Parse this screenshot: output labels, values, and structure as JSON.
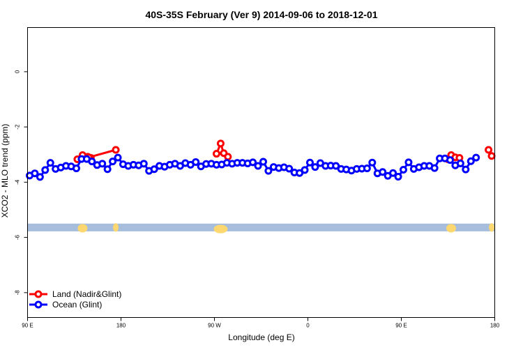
{
  "chart_data": {
    "type": "line",
    "title": "40S-35S February (Ver 9)   2014-09-06 to 2018-12-01",
    "xlabel": "Longitude (deg E)",
    "ylabel": "XCO2 - MLO trend (ppm)",
    "x_ticks": [
      {
        "value": 90,
        "label": "90 E"
      },
      {
        "value": 180,
        "label": "180"
      },
      {
        "value": 270,
        "label": "90 W"
      },
      {
        "value": 360,
        "label": "0"
      },
      {
        "value": 450,
        "label": "90 E"
      },
      {
        "value": 540,
        "label": "180"
      }
    ],
    "y_ticks": [
      0,
      -2,
      -4,
      -6,
      -8
    ],
    "xlim": [
      90,
      540
    ],
    "ylim": [
      -8.9,
      1.6
    ],
    "grid": false,
    "legend_position": "bottom-left",
    "band": {
      "y_from": -5.5,
      "y_to": -5.78,
      "color": "#a6bddb",
      "land_color": "#fdd870"
    },
    "series": [
      {
        "name": "Land (Nadir&Glint)",
        "color": "#ff0000",
        "segments": [
          [
            [
              138,
              -3.17
            ],
            [
              143,
              -3.02
            ],
            [
              148,
              -3.08
            ],
            [
              151,
              -3.12
            ]
          ],
          [
            [
              175,
              -2.83
            ],
            [
              149,
              -3.1
            ]
          ],
          [
            [
              272,
              -2.97
            ],
            [
              276,
              -2.6
            ],
            [
              279,
              -2.95
            ],
            [
              283,
              -3.08
            ]
          ],
          [
            [
              495,
              -3.17
            ],
            [
              498,
              -3.02
            ],
            [
              502,
              -3.1
            ],
            [
              506,
              -3.12
            ]
          ],
          [
            [
              534,
              -2.83
            ],
            [
              537,
              -3.05
            ]
          ]
        ]
      },
      {
        "name": "Ocean (Glint)",
        "color": "#0000ff",
        "points": [
          [
            92,
            -3.76
          ],
          [
            97,
            -3.68
          ],
          [
            102,
            -3.81
          ],
          [
            107,
            -3.56
          ],
          [
            112,
            -3.3
          ],
          [
            117,
            -3.52
          ],
          [
            122,
            -3.47
          ],
          [
            127,
            -3.41
          ],
          [
            132,
            -3.43
          ],
          [
            137,
            -3.5
          ],
          [
            142,
            -3.16
          ],
          [
            147,
            -3.16
          ],
          [
            152,
            -3.25
          ],
          [
            157,
            -3.38
          ],
          [
            162,
            -3.33
          ],
          [
            167,
            -3.53
          ],
          [
            172,
            -3.25
          ],
          [
            177,
            -3.11
          ],
          [
            182,
            -3.35
          ],
          [
            187,
            -3.41
          ],
          [
            192,
            -3.37
          ],
          [
            197,
            -3.39
          ],
          [
            202,
            -3.33
          ],
          [
            207,
            -3.59
          ],
          [
            212,
            -3.53
          ],
          [
            217,
            -3.41
          ],
          [
            222,
            -3.44
          ],
          [
            227,
            -3.37
          ],
          [
            232,
            -3.33
          ],
          [
            237,
            -3.41
          ],
          [
            242,
            -3.31
          ],
          [
            247,
            -3.37
          ],
          [
            252,
            -3.27
          ],
          [
            257,
            -3.43
          ],
          [
            262,
            -3.34
          ],
          [
            267,
            -3.33
          ],
          [
            272,
            -3.37
          ],
          [
            277,
            -3.36
          ],
          [
            282,
            -3.3
          ],
          [
            287,
            -3.33
          ],
          [
            292,
            -3.3
          ],
          [
            297,
            -3.3
          ],
          [
            302,
            -3.32
          ],
          [
            307,
            -3.28
          ],
          [
            312,
            -3.41
          ],
          [
            317,
            -3.26
          ],
          [
            322,
            -3.59
          ],
          [
            327,
            -3.45
          ],
          [
            332,
            -3.49
          ],
          [
            337,
            -3.46
          ],
          [
            342,
            -3.51
          ],
          [
            347,
            -3.65
          ],
          [
            352,
            -3.67
          ],
          [
            357,
            -3.56
          ],
          [
            362,
            -3.29
          ],
          [
            367,
            -3.45
          ],
          [
            372,
            -3.31
          ],
          [
            377,
            -3.41
          ],
          [
            382,
            -3.4
          ],
          [
            387,
            -3.41
          ],
          [
            392,
            -3.52
          ],
          [
            397,
            -3.54
          ],
          [
            402,
            -3.58
          ],
          [
            407,
            -3.52
          ],
          [
            412,
            -3.51
          ],
          [
            417,
            -3.5
          ],
          [
            422,
            -3.29
          ],
          [
            427,
            -3.68
          ],
          [
            432,
            -3.63
          ],
          [
            437,
            -3.77
          ],
          [
            442,
            -3.67
          ],
          [
            447,
            -3.8
          ],
          [
            452,
            -3.55
          ],
          [
            457,
            -3.28
          ],
          [
            462,
            -3.52
          ],
          [
            467,
            -3.46
          ],
          [
            472,
            -3.41
          ],
          [
            477,
            -3.41
          ],
          [
            482,
            -3.49
          ],
          [
            487,
            -3.14
          ],
          [
            492,
            -3.14
          ],
          [
            497,
            -3.2
          ],
          [
            502,
            -3.39
          ],
          [
            507,
            -3.32
          ],
          [
            512,
            -3.54
          ],
          [
            517,
            -3.24
          ],
          [
            522,
            -3.11
          ]
        ]
      }
    ]
  }
}
